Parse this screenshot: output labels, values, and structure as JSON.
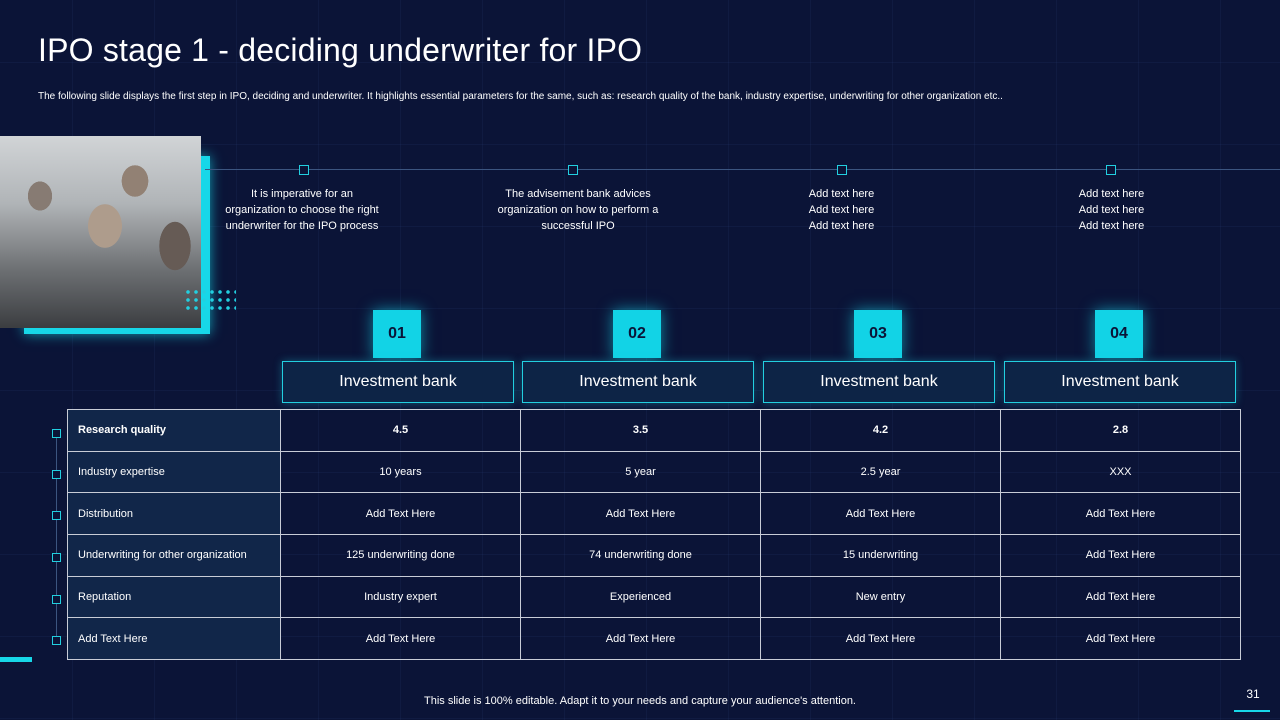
{
  "title": "IPO stage 1 - deciding underwriter for IPO",
  "subtitle": "The following slide displays the first step in IPO, deciding and underwriter. It highlights essential parameters for the same, such as: research quality of the bank, industry expertise, underwriting for other organization etc..",
  "timeline": [
    {
      "text": "It is imperative for an organization to choose the right underwriter for the IPO process"
    },
    {
      "text": "The advisement bank advices organization on how to perform a successful IPO"
    },
    {
      "text": "Add text here Add text here Add text here"
    },
    {
      "text": "Add text here Add text here Add text here"
    }
  ],
  "columns": [
    {
      "number": "01",
      "label": "Investment bank"
    },
    {
      "number": "02",
      "label": "Investment bank"
    },
    {
      "number": "03",
      "label": "Investment bank"
    },
    {
      "number": "04",
      "label": "Investment bank"
    }
  ],
  "rows": [
    {
      "label": "Research quality",
      "values": [
        "4.5",
        "3.5",
        "4.2",
        "2.8"
      ]
    },
    {
      "label": "Industry expertise",
      "values": [
        "10 years",
        "5 year",
        "2.5 year",
        "XXX"
      ]
    },
    {
      "label": "Distribution",
      "values": [
        "Add Text Here",
        "Add Text Here",
        "Add Text Here",
        "Add Text Here"
      ]
    },
    {
      "label": "Underwriting for other organization",
      "values": [
        "125 underwriting done",
        "74 underwriting done",
        "15 underwriting",
        "Add Text Here"
      ]
    },
    {
      "label": "Reputation",
      "values": [
        "Industry expert",
        "Experienced",
        "New entry",
        "Add Text Here"
      ]
    },
    {
      "label": "Add Text Here",
      "values": [
        "Add Text Here",
        "Add Text Here",
        "Add Text Here",
        "Add Text Here"
      ]
    }
  ],
  "footer": "This slide is 100% editable. Adapt it to your needs and capture your audience's attention.",
  "page_number": "31",
  "colors": {
    "background": "#0b1437",
    "accent": "#17d7e8"
  }
}
